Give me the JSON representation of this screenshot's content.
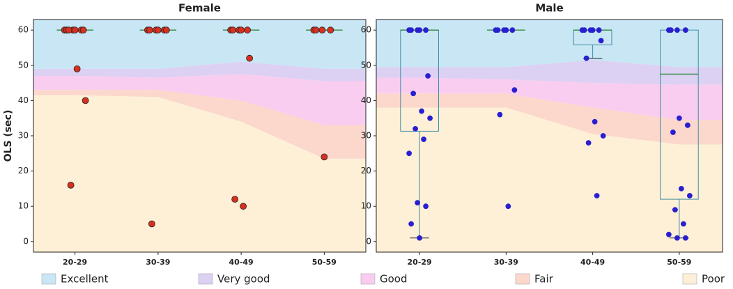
{
  "chart_data": [
    {
      "type": "box",
      "title": "Female",
      "y_label": "OLS (sec)",
      "categories": [
        "20-29",
        "30-39",
        "40-49",
        "50-59"
      ],
      "ylim": [
        -3,
        63
      ],
      "yticks": [
        0,
        10,
        20,
        30,
        40,
        50,
        60
      ],
      "box_color": "#3d8fa0",
      "median_color": "#2e8b3a",
      "point_color": "#d7301f",
      "point_edge": "#222222",
      "bands": [
        {
          "name": "Excellent",
          "color": "#c9e6f5",
          "values": [
            49,
            49,
            51,
            49
          ]
        },
        {
          "name": "Very good",
          "color": "#dcd0f3",
          "values": [
            47,
            46.5,
            47.5,
            45.5
          ]
        },
        {
          "name": "Good",
          "color": "#f8cdf0",
          "values": [
            43,
            43,
            40,
            33
          ]
        },
        {
          "name": "Fair",
          "color": "#fbd7cc",
          "values": [
            41.5,
            41,
            34,
            23.5
          ]
        },
        {
          "name": "Poor",
          "color": "#fdf0d7"
        }
      ],
      "boxes": [
        {
          "q1": 60,
          "median": 60,
          "q3": 60,
          "whislo": 60,
          "whishi": 60
        },
        {
          "q1": 60,
          "median": 60,
          "q3": 60,
          "whislo": 60,
          "whishi": 60
        },
        {
          "q1": 60,
          "median": 60,
          "q3": 60,
          "whislo": 60,
          "whishi": 60
        },
        {
          "q1": 60,
          "median": 60,
          "q3": 60,
          "whislo": 60,
          "whishi": 60
        }
      ],
      "points": [
        [
          60,
          60,
          60,
          60,
          60,
          60,
          60,
          49,
          40,
          16
        ],
        [
          60,
          60,
          60,
          60,
          60,
          60,
          5
        ],
        [
          60,
          60,
          60,
          60,
          60,
          52,
          12,
          10
        ],
        [
          60,
          60,
          60,
          60,
          24
        ]
      ]
    },
    {
      "type": "box",
      "title": "Male",
      "categories": [
        "20-29",
        "30-39",
        "40-49",
        "50-59"
      ],
      "ylim": [
        -3,
        63
      ],
      "yticks": [
        0,
        10,
        20,
        30,
        40,
        50,
        60
      ],
      "box_color": "#3d8fa0",
      "median_color": "#2e8b3a",
      "point_color": "#2a1fd0",
      "point_edge": "#2a1fd0",
      "bands": [
        {
          "name": "Excellent",
          "color": "#c9e6f5",
          "values": [
            49.5,
            49.5,
            51.5,
            49.5
          ]
        },
        {
          "name": "Very good",
          "color": "#dcd0f3",
          "values": [
            46.5,
            46,
            45,
            44.5
          ]
        },
        {
          "name": "Good",
          "color": "#f8cdf0",
          "values": [
            42,
            42,
            38,
            34.5
          ]
        },
        {
          "name": "Fair",
          "color": "#fbd7cc",
          "values": [
            38,
            38,
            30.5,
            27.5
          ]
        },
        {
          "name": "Poor",
          "color": "#fdf0d7"
        }
      ],
      "boxes": [
        {
          "q1": 31.3,
          "median": 60,
          "q3": 60,
          "whislo": 1,
          "whishi": 60
        },
        {
          "q1": 60,
          "median": 60,
          "q3": 60,
          "whislo": 60,
          "whishi": 60
        },
        {
          "q1": 55.8,
          "median": 60,
          "q3": 60,
          "whislo": 52,
          "whishi": 60
        },
        {
          "q1": 12,
          "median": 47.5,
          "q3": 60,
          "whislo": 1,
          "whishi": 60
        }
      ],
      "points": [
        [
          60,
          60,
          60,
          60,
          60,
          47,
          42,
          37,
          35,
          32,
          29,
          25,
          11,
          10,
          5,
          1
        ],
        [
          60,
          60,
          60,
          60,
          60,
          43,
          36,
          10
        ],
        [
          60,
          60,
          60,
          60,
          60,
          57,
          52,
          34,
          30,
          28,
          13
        ],
        [
          60,
          60,
          60,
          60,
          35,
          33,
          31,
          15,
          13,
          9,
          5,
          2,
          1,
          1
        ]
      ]
    }
  ]
}
